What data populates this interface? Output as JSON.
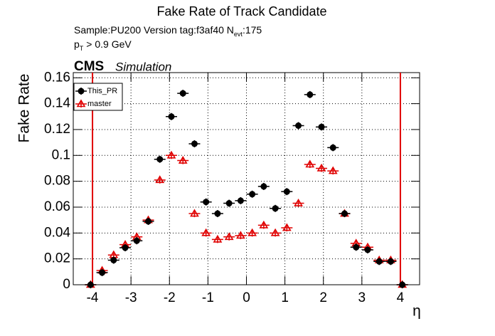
{
  "chart_data": {
    "type": "scatter",
    "title": "Fake Rate of Track Candidate",
    "sample_text": "Sample:PU200   Version tag:f3af40  N",
    "nevt_sub": "evt",
    "nevt_value": ":175",
    "pt_symbol": "p",
    "pt_sub": "T",
    "pt_cut": "> 0.9 GeV",
    "experiment": "CMS",
    "status": "Simulation",
    "x_label": "η",
    "y_label": "Fake Rate",
    "x": [
      -4.05,
      -3.75,
      -3.45,
      -3.15,
      -2.85,
      -2.55,
      -2.25,
      -1.95,
      -1.65,
      -1.35,
      -1.05,
      -0.75,
      -0.45,
      -0.15,
      0.15,
      0.45,
      0.75,
      1.05,
      1.35,
      1.65,
      1.95,
      2.25,
      2.55,
      2.85,
      3.15,
      3.45,
      3.75,
      4.05
    ],
    "series": [
      {
        "name": "This_PR",
        "color": "#000000",
        "marker": "circle",
        "values": [
          0,
          0.0094,
          0.019,
          0.0286,
          0.034,
          0.049,
          0.097,
          0.13,
          0.148,
          0.109,
          0.064,
          0.055,
          0.063,
          0.065,
          0.07,
          0.076,
          0.059,
          0.072,
          0.123,
          0.147,
          0.122,
          0.106,
          0.055,
          0.029,
          0.027,
          0.018,
          0.018,
          0
        ]
      },
      {
        "name": "master",
        "color": "#e00000",
        "marker": "open-triangle",
        "values": [
          0,
          0.011,
          0.023,
          0.031,
          0.037,
          0.05,
          0.081,
          0.1,
          0.096,
          0.055,
          0.04,
          0.035,
          0.037,
          0.038,
          0.04,
          0.046,
          0.04,
          0.044,
          0.063,
          0.093,
          0.09,
          0.088,
          0.055,
          0.032,
          0.029,
          0.019,
          0.019,
          0
        ]
      }
    ],
    "cut_lines": [
      -4,
      4
    ],
    "cut_color": "#e00000",
    "xlim": [
      -4.5,
      4.5
    ],
    "ylim": [
      0,
      0.164
    ],
    "xticks": [
      -4,
      -3,
      -2,
      -1,
      0,
      1,
      2,
      3,
      4
    ],
    "yticks": [
      0,
      0.02,
      0.04,
      0.06,
      0.08,
      0.1,
      0.12,
      0.14,
      0.16
    ],
    "grid": true,
    "legend": "upper-left"
  }
}
